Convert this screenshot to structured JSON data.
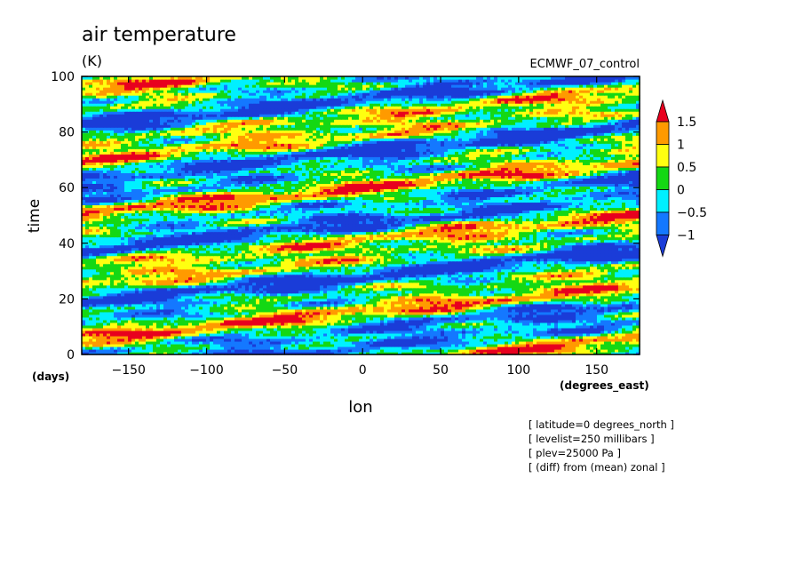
{
  "chart_data": {
    "type": "heatmap",
    "title": "air temperature",
    "units": "(K)",
    "source_label": "ECMWF_07_control",
    "xlabel": "lon",
    "ylabel": "time",
    "x_units": "(degrees_east)",
    "y_units": "(days)",
    "xlim": [
      -180,
      177.5
    ],
    "ylim": [
      0,
      100
    ],
    "x_ticks": [
      -150,
      -100,
      -50,
      0,
      50,
      100,
      150
    ],
    "y_ticks": [
      0,
      20,
      40,
      60,
      80,
      100
    ],
    "colorbar": {
      "levels": [
        1.5,
        1,
        0.5,
        0,
        -0.5,
        -1
      ],
      "colors": [
        "#e8001e",
        "#ff9a00",
        "#ffff10",
        "#14d814",
        "#00f0ff",
        "#1478ff",
        "#1a3cd8"
      ],
      "extend": "both"
    },
    "annotations": [
      "[ latitude=0 degrees_north ]",
      "[ levelist=250 millibars ]",
      "[ plev=25000 Pa ]",
      "[ (diff) from (mean) zonal ]"
    ]
  }
}
